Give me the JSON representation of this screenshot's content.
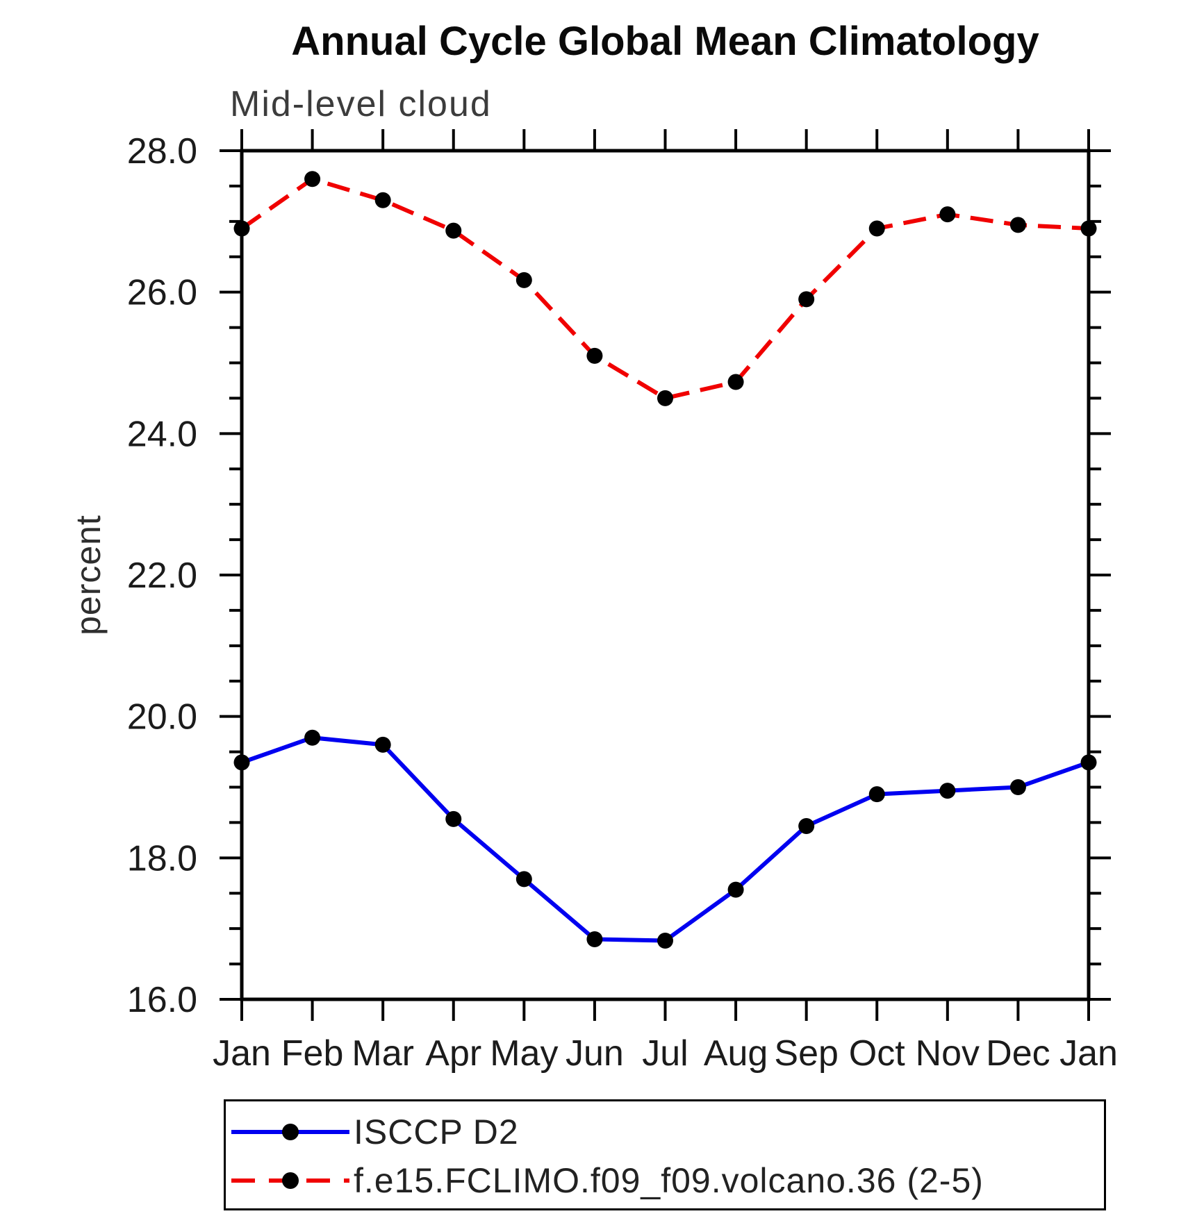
{
  "chart_data": {
    "type": "line",
    "title": "Annual Cycle Global Mean Climatology",
    "subtitle": "Mid-level cloud",
    "ylabel": "percent",
    "categories": [
      "Jan",
      "Feb",
      "Mar",
      "Apr",
      "May",
      "Jun",
      "Jul",
      "Aug",
      "Sep",
      "Oct",
      "Nov",
      "Dec",
      "Jan"
    ],
    "ylim": [
      16.0,
      28.0
    ],
    "ytick_major_step": 2.0,
    "ytick_minor_step": 0.5,
    "ytick_labels": [
      "28.0",
      "26.0",
      "24.0",
      "22.0",
      "20.0",
      "18.0",
      "16.0"
    ],
    "grid": false,
    "legend_position": "below-chart",
    "frame_color": "#000000",
    "marker_shape": "filled-circle",
    "series": [
      {
        "name": "ISCCP D2",
        "color": "#0000f0",
        "line_style": "solid",
        "marker_color": "#000000",
        "values": [
          19.35,
          19.7,
          19.6,
          18.55,
          17.7,
          16.85,
          16.83,
          17.55,
          18.45,
          18.9,
          18.95,
          19.0,
          19.35
        ]
      },
      {
        "name": "f.e15.FCLIMO.f09_f09.volcano.36 (2-5)",
        "color": "#f00000",
        "line_style": "dashed",
        "marker_color": "#000000",
        "values": [
          26.9,
          27.6,
          27.3,
          26.87,
          26.17,
          25.1,
          24.5,
          24.73,
          25.9,
          26.9,
          27.1,
          26.95,
          26.9
        ]
      }
    ]
  }
}
